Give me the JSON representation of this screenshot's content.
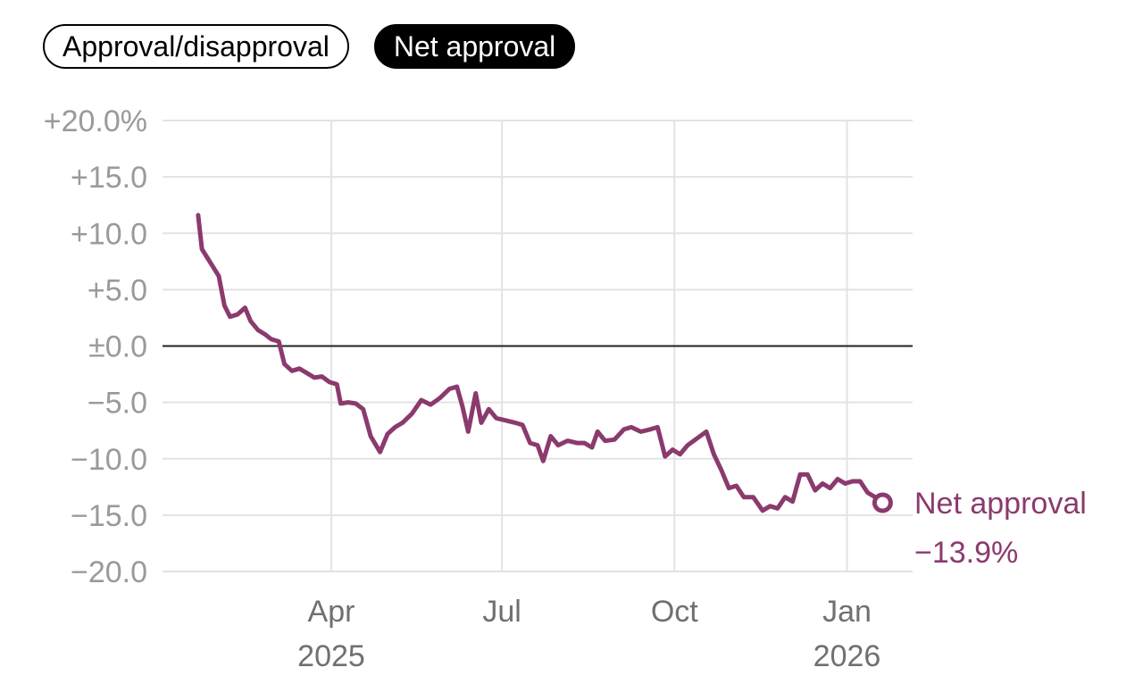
{
  "toggles": [
    {
      "label": "Approval/disapproval",
      "active": false
    },
    {
      "label": "Net approval",
      "active": true
    }
  ],
  "colors": {
    "series": "#8b3a6e",
    "grid": "#e3e3e3",
    "zero_line": "#222222",
    "y_tick": "#9a9a9a",
    "x_tick": "#707070"
  },
  "chart_data": {
    "type": "line",
    "title": "",
    "xlabel": "",
    "ylabel": "",
    "ylim": [
      -20,
      20
    ],
    "xlim": [
      "2025-01-01",
      "2026-02-05"
    ],
    "grid": true,
    "y_ticks": [
      {
        "value": 20,
        "label": "+20.0%"
      },
      {
        "value": 15,
        "label": "+15.0"
      },
      {
        "value": 10,
        "label": "+10.0"
      },
      {
        "value": 5,
        "label": "+5.0"
      },
      {
        "value": 0,
        "label": "±0.0"
      },
      {
        "value": -5,
        "label": "−5.0"
      },
      {
        "value": -10,
        "label": "−10.0"
      },
      {
        "value": -15,
        "label": "−15.0"
      },
      {
        "value": -20,
        "label": "−20.0"
      }
    ],
    "x_ticks": [
      {
        "date": "2025-04-01",
        "label": "Apr",
        "year": "2025"
      },
      {
        "date": "2025-07-01",
        "label": "Jul",
        "year": ""
      },
      {
        "date": "2025-10-01",
        "label": "Oct",
        "year": ""
      },
      {
        "date": "2026-01-01",
        "label": "Jan",
        "year": "2026"
      }
    ],
    "series": [
      {
        "name": "Net approval",
        "end_value_label": "−13.9%",
        "points": [
          [
            "2025-01-20",
            11.6
          ],
          [
            "2025-01-22",
            8.6
          ],
          [
            "2025-01-25",
            7.8
          ],
          [
            "2025-01-28",
            7.0
          ],
          [
            "2025-01-31",
            6.2
          ],
          [
            "2025-02-03",
            3.6
          ],
          [
            "2025-02-06",
            2.6
          ],
          [
            "2025-02-10",
            2.8
          ],
          [
            "2025-02-14",
            3.4
          ],
          [
            "2025-02-17",
            2.2
          ],
          [
            "2025-02-21",
            1.4
          ],
          [
            "2025-02-25",
            1.0
          ],
          [
            "2025-02-28",
            0.6
          ],
          [
            "2025-03-04",
            0.4
          ],
          [
            "2025-03-07",
            -1.6
          ],
          [
            "2025-03-11",
            -2.2
          ],
          [
            "2025-03-15",
            -2.0
          ],
          [
            "2025-03-19",
            -2.4
          ],
          [
            "2025-03-23",
            -2.8
          ],
          [
            "2025-03-27",
            -2.7
          ],
          [
            "2025-03-31",
            -3.2
          ],
          [
            "2025-04-04",
            -3.4
          ],
          [
            "2025-04-06",
            -5.1
          ],
          [
            "2025-04-10",
            -5.0
          ],
          [
            "2025-04-14",
            -5.1
          ],
          [
            "2025-04-18",
            -5.6
          ],
          [
            "2025-04-22",
            -8.0
          ],
          [
            "2025-04-27",
            -9.4
          ],
          [
            "2025-05-01",
            -7.8
          ],
          [
            "2025-05-05",
            -7.2
          ],
          [
            "2025-05-09",
            -6.8
          ],
          [
            "2025-05-14",
            -6.0
          ],
          [
            "2025-05-19",
            -4.8
          ],
          [
            "2025-05-24",
            -5.2
          ],
          [
            "2025-05-29",
            -4.6
          ],
          [
            "2025-06-03",
            -3.8
          ],
          [
            "2025-06-07",
            -3.6
          ],
          [
            "2025-06-10",
            -5.4
          ],
          [
            "2025-06-13",
            -7.6
          ],
          [
            "2025-06-17",
            -4.2
          ],
          [
            "2025-06-20",
            -6.8
          ],
          [
            "2025-06-24",
            -5.6
          ],
          [
            "2025-06-28",
            -6.4
          ],
          [
            "2025-07-03",
            -6.6
          ],
          [
            "2025-07-08",
            -6.8
          ],
          [
            "2025-07-12",
            -7.0
          ],
          [
            "2025-07-16",
            -8.6
          ],
          [
            "2025-07-20",
            -8.8
          ],
          [
            "2025-07-23",
            -10.2
          ],
          [
            "2025-07-27",
            -8.0
          ],
          [
            "2025-07-31",
            -8.8
          ],
          [
            "2025-08-05",
            -8.4
          ],
          [
            "2025-08-10",
            -8.6
          ],
          [
            "2025-08-14",
            -8.6
          ],
          [
            "2025-08-18",
            -9.0
          ],
          [
            "2025-08-21",
            -7.6
          ],
          [
            "2025-08-25",
            -8.4
          ],
          [
            "2025-08-30",
            -8.3
          ],
          [
            "2025-09-04",
            -7.4
          ],
          [
            "2025-09-08",
            -7.2
          ],
          [
            "2025-09-13",
            -7.6
          ],
          [
            "2025-09-18",
            -7.4
          ],
          [
            "2025-09-22",
            -7.2
          ],
          [
            "2025-09-26",
            -9.8
          ],
          [
            "2025-09-30",
            -9.2
          ],
          [
            "2025-10-04",
            -9.6
          ],
          [
            "2025-10-08",
            -8.8
          ],
          [
            "2025-10-13",
            -8.2
          ],
          [
            "2025-10-18",
            -7.6
          ],
          [
            "2025-10-22",
            -9.6
          ],
          [
            "2025-10-26",
            -11.0
          ],
          [
            "2025-10-30",
            -12.6
          ],
          [
            "2025-11-03",
            -12.4
          ],
          [
            "2025-11-07",
            -13.4
          ],
          [
            "2025-11-12",
            -13.4
          ],
          [
            "2025-11-17",
            -14.6
          ],
          [
            "2025-11-21",
            -14.2
          ],
          [
            "2025-11-25",
            -14.4
          ],
          [
            "2025-11-29",
            -13.4
          ],
          [
            "2025-12-03",
            -13.8
          ],
          [
            "2025-12-07",
            -11.4
          ],
          [
            "2025-12-11",
            -11.4
          ],
          [
            "2025-12-15",
            -12.8
          ],
          [
            "2025-12-19",
            -12.2
          ],
          [
            "2025-12-23",
            -12.6
          ],
          [
            "2025-12-27",
            -11.8
          ],
          [
            "2025-12-31",
            -12.2
          ],
          [
            "2026-01-04",
            -12.0
          ],
          [
            "2026-01-08",
            -12.0
          ],
          [
            "2026-01-12",
            -13.0
          ],
          [
            "2026-01-16",
            -13.4
          ],
          [
            "2026-01-20",
            -13.9
          ]
        ]
      }
    ]
  }
}
